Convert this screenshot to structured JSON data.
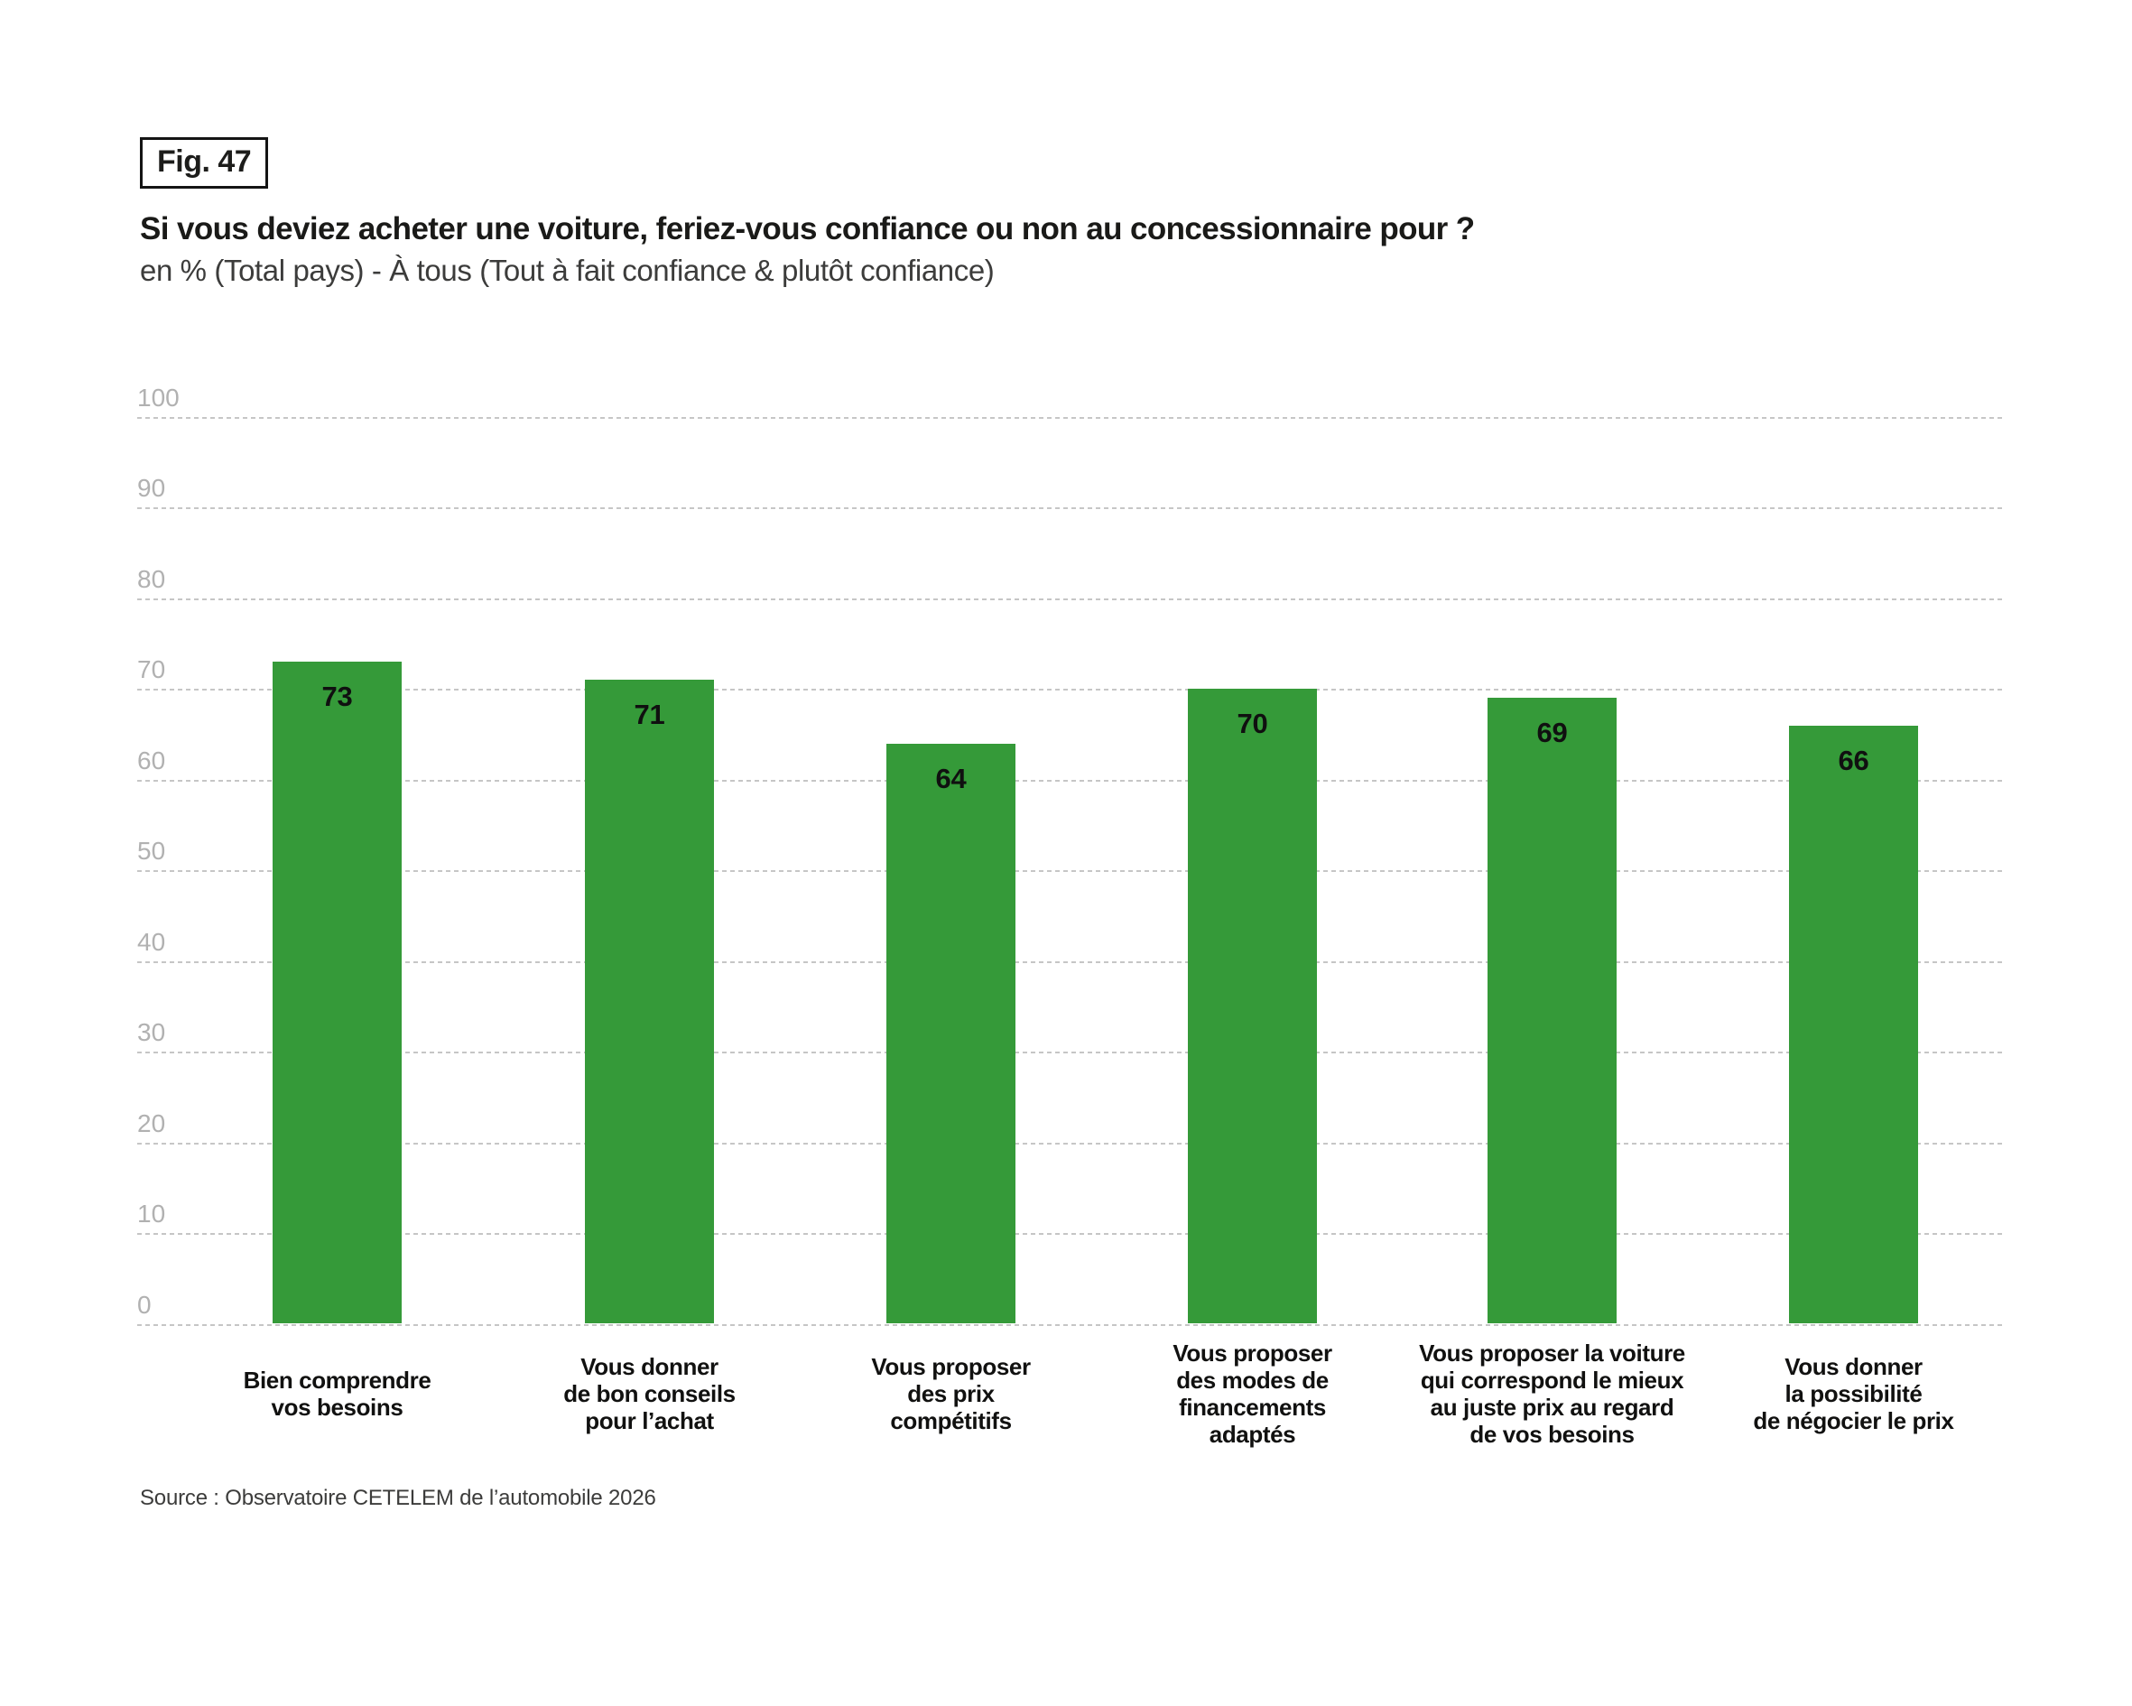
{
  "figure_badge": "Fig. 47",
  "header": {
    "title": "Si vous deviez acheter une voiture, feriez-vous confiance ou non au concessionnaire pour ?",
    "subtitle": "en % (Total pays) - À tous (Tout à fait confiance & plutôt confiance)"
  },
  "source": "Source : Observatoire CETELEM de l’automobile 2026",
  "chart_data": {
    "type": "bar",
    "title": "Si vous deviez acheter une voiture, feriez-vous confiance ou non au concessionnaire pour ?",
    "subtitle": "en % (Total pays) - À tous (Tout à fait confiance & plutôt confiance)",
    "categories": [
      "Bien comprendre\nvos besoins",
      "Vous donner\nde bon conseils\npour l’achat",
      "Vous proposer\ndes prix\ncompétitifs",
      "Vous proposer\ndes modes de\nfinancements\nadaptés",
      "Vous proposer la voiture\nqui correspond le mieux\nau juste prix au regard\nde vos besoins",
      "Vous donner\nla possibilité\nde négocier le prix"
    ],
    "values": [
      73,
      71,
      64,
      70,
      69,
      66
    ],
    "xlabel": "",
    "ylabel": "",
    "ylim": [
      0,
      100
    ],
    "yticks": [
      0,
      10,
      20,
      30,
      40,
      50,
      60,
      70,
      80,
      90,
      100
    ],
    "grid": "horizontal-dashed",
    "legend": "none",
    "value_labels_position": "inside-top",
    "colors": {
      "bar": "#359a39",
      "grid_line": "#c6c6c6",
      "tick_label": "#b1b1b1",
      "value_label": "#101010",
      "title_text": "#1a1a18",
      "subtitle_text": "#3c3c3b"
    }
  }
}
